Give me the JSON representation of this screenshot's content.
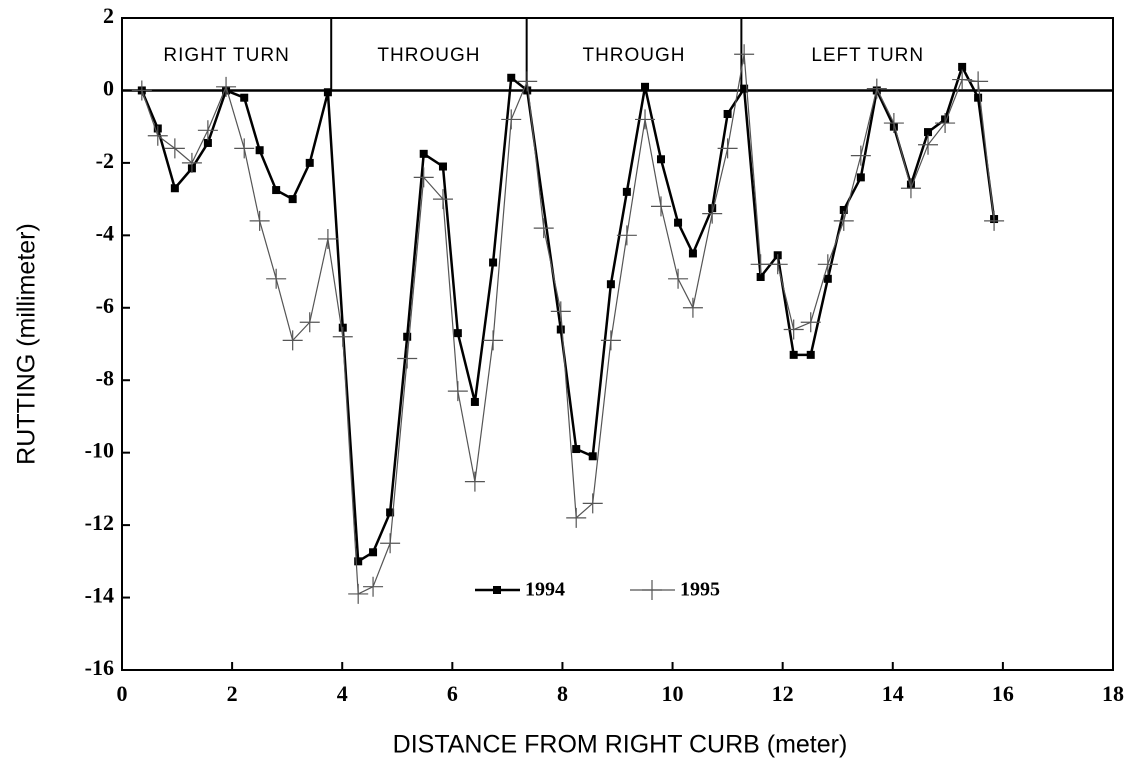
{
  "chart_data": {
    "type": "line",
    "xlabel": "DISTANCE FROM RIGHT CURB  (meter)",
    "ylabel": "RUTTING  (millimeter)",
    "xlim": [
      0,
      18
    ],
    "xticks": [
      0,
      2,
      4,
      6,
      8,
      10,
      12,
      14,
      16,
      18
    ],
    "ylim": [
      -16,
      2
    ],
    "yticks": [
      2,
      0,
      -2,
      -4,
      -6,
      -8,
      -10,
      -12,
      -14,
      -16
    ],
    "lane_labels": [
      "RIGHT TURN",
      "THROUGH",
      "THROUGH",
      "LEFT TURN"
    ],
    "lane_dividers": [
      3.8,
      7.35,
      11.25
    ],
    "legend": "lower center",
    "series": [
      {
        "name": "1994",
        "color": "#000000",
        "marker": "square",
        "x": [
          0.36,
          0.65,
          0.96,
          1.27,
          1.56,
          1.89,
          2.22,
          2.5,
          2.8,
          3.1,
          3.41,
          3.74,
          4.01,
          4.29,
          4.56,
          4.87,
          5.18,
          5.48,
          5.83,
          6.1,
          6.41,
          6.74,
          7.07,
          7.36,
          7.97,
          8.25,
          8.55,
          8.88,
          9.17,
          9.5,
          9.79,
          10.1,
          10.37,
          10.72,
          11.0,
          11.3,
          11.6,
          11.91,
          12.2,
          12.51,
          12.82,
          13.11,
          13.42,
          13.71,
          14.02,
          14.33,
          14.64,
          14.95,
          15.26,
          15.55,
          15.84
        ],
        "values": [
          0,
          -1.05,
          -2.7,
          -2.15,
          -1.45,
          0,
          -0.2,
          -1.65,
          -2.75,
          -3.0,
          -2.0,
          -0.05,
          -6.55,
          -13.0,
          -12.75,
          -11.65,
          -6.8,
          -1.75,
          -2.1,
          -6.7,
          -8.6,
          -4.75,
          0.35,
          0,
          -6.6,
          -9.9,
          -10.1,
          -5.35,
          -2.8,
          0.1,
          -1.9,
          -3.65,
          -4.5,
          -3.25,
          -0.65,
          0.05,
          -5.15,
          -4.55,
          -7.3,
          -7.3,
          -5.2,
          -3.3,
          -2.4,
          0,
          -1.0,
          -2.6,
          -1.15,
          -0.8,
          0.65,
          -0.2,
          -3.55
        ]
      },
      {
        "name": "1995",
        "color": "#555555",
        "marker": "cross",
        "x": [
          0.36,
          0.65,
          0.96,
          1.27,
          1.56,
          1.89,
          2.22,
          2.5,
          2.8,
          3.1,
          3.41,
          3.74,
          4.01,
          4.29,
          4.56,
          4.87,
          5.18,
          5.48,
          5.83,
          6.1,
          6.41,
          6.74,
          7.07,
          7.36,
          7.66,
          7.97,
          8.25,
          8.55,
          8.88,
          9.17,
          9.5,
          9.79,
          10.1,
          10.37,
          10.72,
          11.0,
          11.3,
          11.6,
          11.91,
          12.2,
          12.51,
          12.82,
          13.11,
          13.42,
          13.71,
          14.02,
          14.33,
          14.64,
          14.95,
          15.26,
          15.55,
          15.84
        ],
        "values": [
          0,
          -1.25,
          -1.6,
          -2.0,
          -1.1,
          0.1,
          -1.6,
          -3.6,
          -5.2,
          -6.9,
          -6.4,
          -4.1,
          -6.8,
          -13.9,
          -13.7,
          -12.5,
          -7.4,
          -2.4,
          -3.0,
          -8.3,
          -10.8,
          -6.9,
          -0.8,
          0.25,
          -3.8,
          -6.1,
          -11.8,
          -11.4,
          -6.9,
          -4.0,
          -0.8,
          -3.2,
          -5.2,
          -6.0,
          -3.4,
          -1.6,
          1.0,
          -4.8,
          -4.8,
          -6.6,
          -6.4,
          -4.8,
          -3.6,
          -1.8,
          0.05,
          -0.9,
          -2.7,
          -1.5,
          -0.9,
          0.3,
          0.25,
          -3.6
        ]
      }
    ]
  }
}
